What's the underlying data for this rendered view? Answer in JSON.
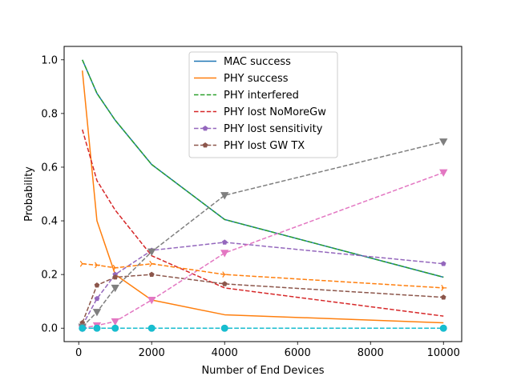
{
  "chart_data": {
    "type": "line",
    "title": "",
    "xlabel": "Number of End Devices",
    "ylabel": "Probability",
    "xlim": [
      -400,
      10500
    ],
    "ylim": [
      -0.05,
      1.05
    ],
    "xticks": [
      0,
      2000,
      4000,
      6000,
      8000,
      10000
    ],
    "yticks": [
      0.0,
      0.2,
      0.4,
      0.6,
      0.8,
      1.0
    ],
    "xtick_labels": [
      "0",
      "2000",
      "4000",
      "6000",
      "8000",
      "10000"
    ],
    "ytick_labels": [
      "0.0",
      "0.2",
      "0.4",
      "0.6",
      "0.8",
      "1.0"
    ],
    "grid": false,
    "legend_position": "top-center",
    "x": [
      100,
      500,
      1000,
      2000,
      4000,
      10000
    ],
    "series": [
      {
        "name": "MAC success",
        "color": "#1f77b4",
        "dash": "solid",
        "marker": "none",
        "in_legend": true,
        "values": [
          1.0,
          0.875,
          0.775,
          0.61,
          0.405,
          0.19
        ]
      },
      {
        "name": "PHY success",
        "color": "#ff7f0e",
        "dash": "solid",
        "marker": "none",
        "in_legend": true,
        "values": [
          0.96,
          0.4,
          0.2,
          0.105,
          0.05,
          0.02
        ]
      },
      {
        "name": "PHY interfered",
        "color": "#2ca02c",
        "dash": "dashed",
        "marker": "none",
        "in_legend": true,
        "values": [
          1.0,
          0.875,
          0.775,
          0.61,
          0.405,
          0.19
        ]
      },
      {
        "name": "PHY lost NoMoreGw",
        "color": "#d62728",
        "dash": "dashed",
        "marker": "none",
        "in_legend": true,
        "values": [
          0.74,
          0.55,
          0.44,
          0.27,
          0.15,
          0.045
        ]
      },
      {
        "name": "PHY lost sensitivity",
        "color": "#9467bd",
        "dash": "dashed",
        "marker": "pentagon",
        "in_legend": true,
        "values": [
          0.01,
          0.11,
          0.2,
          0.29,
          0.32,
          0.24
        ]
      },
      {
        "name": "PHY lost GW TX",
        "color": "#8c564b",
        "dash": "dashed",
        "marker": "pentagon",
        "in_legend": true,
        "values": [
          0.02,
          0.16,
          0.19,
          0.2,
          0.165,
          0.115
        ]
      },
      {
        "name": "",
        "color": "#e377c2",
        "dash": "dashed",
        "marker": "triangle-down",
        "in_legend": false,
        "values": [
          0.0,
          0.01,
          0.025,
          0.105,
          0.28,
          0.58
        ]
      },
      {
        "name": "",
        "color": "#7f7f7f",
        "dash": "dashed",
        "marker": "triangle-down",
        "in_legend": false,
        "values": [
          0.005,
          0.06,
          0.15,
          0.285,
          0.495,
          0.695
        ]
      },
      {
        "name": "",
        "color": "#ff7f0e",
        "dash": "dashed",
        "marker": "tri-right",
        "in_legend": false,
        "values": [
          0.24,
          0.235,
          0.225,
          0.24,
          0.2,
          0.15
        ]
      },
      {
        "name": "",
        "color": "#1f77b4",
        "dash": "dashed",
        "marker": "octagon",
        "in_legend": false,
        "values": [
          0.0,
          0.0,
          0.0,
          0.0,
          0.0,
          0.0
        ]
      },
      {
        "name": "",
        "color": "#17becf",
        "dash": "dashed",
        "marker": "octagon",
        "in_legend": false,
        "values": [
          0.0,
          0.0,
          0.0,
          0.0,
          0.0,
          0.0
        ]
      }
    ]
  }
}
